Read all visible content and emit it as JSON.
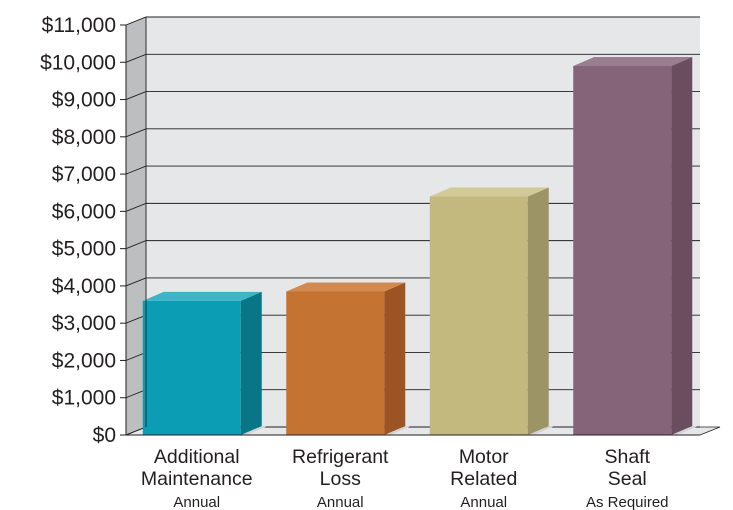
{
  "chart_data": {
    "type": "bar",
    "categories": [
      {
        "lines": [
          "Additional",
          "Maintenance"
        ],
        "sub": "Annual"
      },
      {
        "lines": [
          "Refrigerant",
          "Loss"
        ],
        "sub": "Annual"
      },
      {
        "lines": [
          "Motor",
          "Related"
        ],
        "sub": "Annual"
      },
      {
        "lines": [
          "Shaft",
          "Seal"
        ],
        "sub": "As Required"
      }
    ],
    "values": [
      3600,
      3850,
      6400,
      9900
    ],
    "ylim": [
      0,
      11000
    ],
    "yticks": [
      "$0",
      "$1,000",
      "$2,000",
      "$3,000",
      "$4,000",
      "$5,000",
      "$6,000",
      "$7,000",
      "$8,000",
      "$9,000",
      "$10,000",
      "$11,000"
    ],
    "grid": true,
    "colors": {
      "bars": [
        {
          "front": "#0b9db3",
          "side": "#087686",
          "top": "#3eb4c6"
        },
        {
          "front": "#c57332",
          "side": "#9c5424",
          "top": "#d38a50"
        },
        {
          "front": "#c3b97e",
          "side": "#9c9464",
          "top": "#d2c998"
        },
        {
          "front": "#856479",
          "side": "#6a4d5f",
          "top": "#9b7d90"
        }
      ],
      "wall_back": "#e6e7e8",
      "wall_side": "#bcbec0",
      "floor": "#e6e7e8",
      "text": "#231f20"
    }
  }
}
